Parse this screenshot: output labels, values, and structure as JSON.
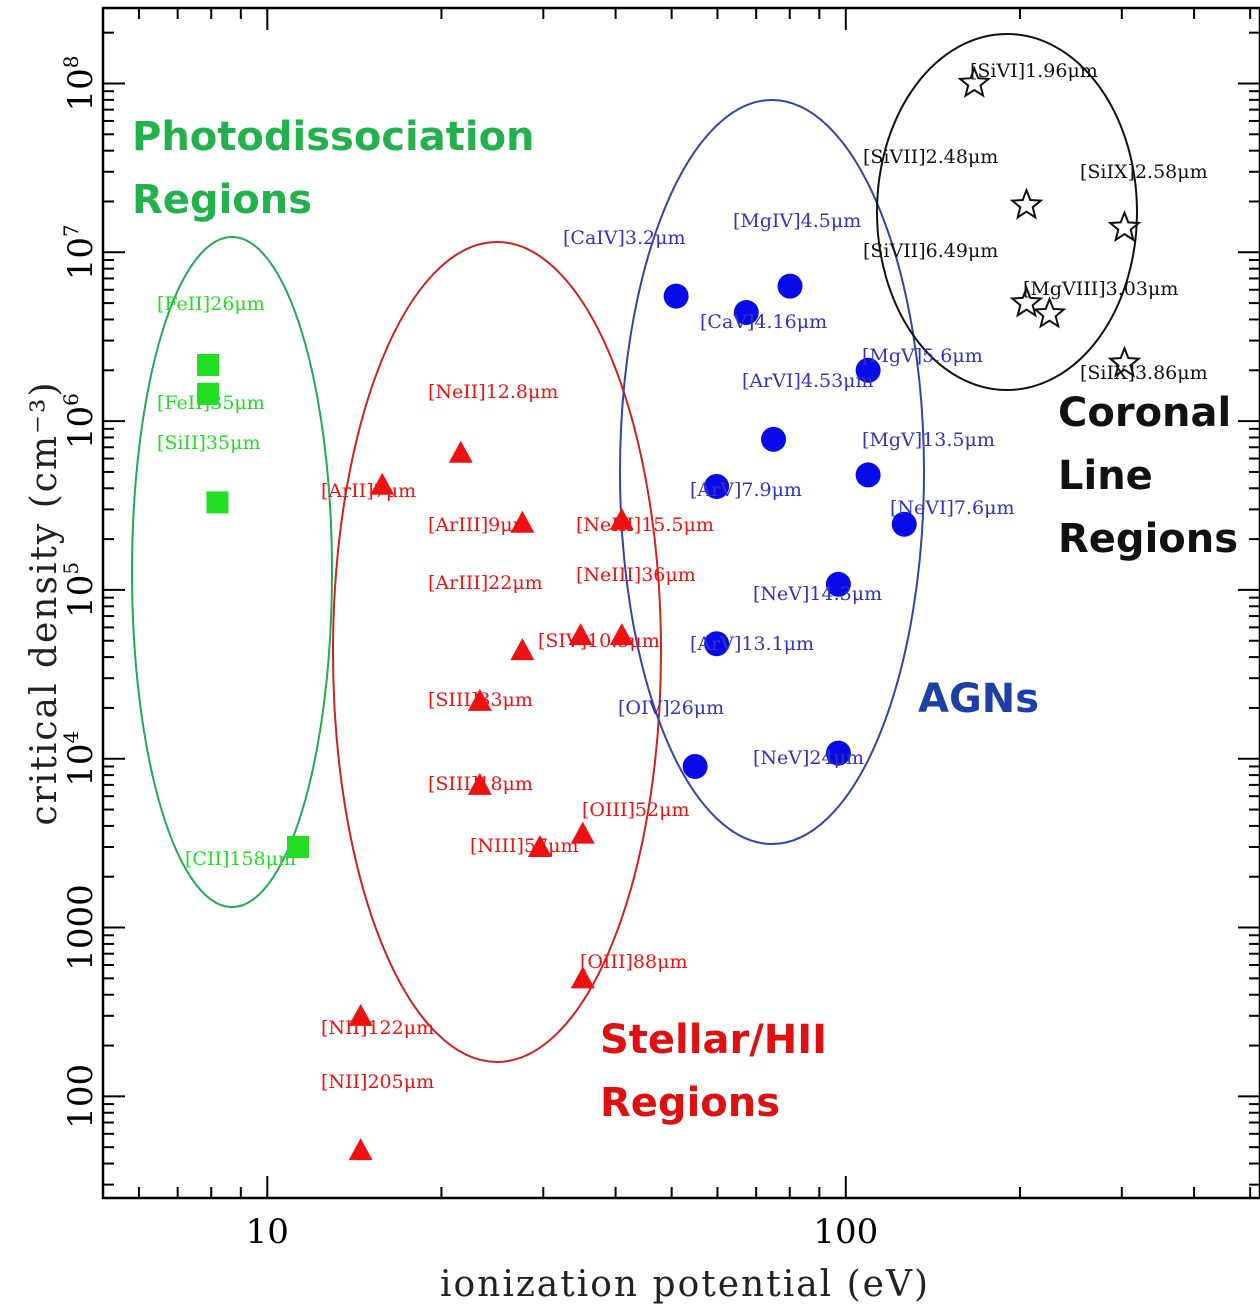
{
  "chart_data": {
    "type": "scatter",
    "xlabel": "ionization potential (eV)",
    "ylabel": "critical density (cm⁻³)",
    "x_scale": "log",
    "y_scale": "log",
    "xlim": [
      5.2,
      520
    ],
    "ylim": [
      25,
      280000000
    ],
    "x_ticks": [
      {
        "value": 10,
        "label": "10"
      },
      {
        "value": 100,
        "label": "100"
      }
    ],
    "y_ticks": [
      {
        "value": 100,
        "label": "100",
        "exp": ""
      },
      {
        "value": 1000,
        "label": "1000",
        "exp": ""
      },
      {
        "value": 10000,
        "label": "10",
        "exp": "4"
      },
      {
        "value": 100000,
        "label": "10",
        "exp": "5"
      },
      {
        "value": 1000000,
        "label": "10",
        "exp": "6"
      },
      {
        "value": 10000000,
        "label": "10",
        "exp": "7"
      },
      {
        "value": 100000000,
        "label": "10",
        "exp": "8"
      }
    ],
    "colors": {
      "pdr_marker": "#22dd22",
      "pdr_ellipse": "#22aa55",
      "pdr_label": "#22b14c",
      "stellar": "#ee1111",
      "stellar_ellipse": "#cc2222",
      "stellar_label": "#dd1111",
      "agn": "#0a0ae8",
      "agn_ellipse": "#3344aa",
      "agn_text": "#3333bb",
      "agn_label": "#1f3fa6",
      "coronal": "#111111"
    },
    "region_labels": [
      {
        "lines": [
          "Photodissociation",
          "Regions"
        ],
        "color": "pdr_label"
      },
      {
        "lines": [
          "Stellar/HII",
          "Regions"
        ],
        "color": "stellar_label"
      },
      {
        "lines": [
          "AGNs"
        ],
        "color": "agn_label"
      },
      {
        "lines": [
          "Coronal",
          "Line",
          "Regions"
        ],
        "color": "coronal"
      }
    ],
    "series": [
      {
        "marker": "square",
        "color": "pdr_marker",
        "points": [
          {
            "x": 7.9,
            "y": 2150000,
            "label": "[FeII]26μm"
          },
          {
            "x": 7.9,
            "y": 1450000,
            "label": "[FeII]35μm"
          },
          {
            "x": 8.2,
            "y": 330000,
            "label": "[SiII]35μm"
          },
          {
            "x": 11.3,
            "y": 3000,
            "label": "[CII]158μm"
          }
        ]
      },
      {
        "marker": "triangle",
        "color": "stellar",
        "points": [
          {
            "x": 15.8,
            "y": 420000,
            "label": "[ArII]7μm"
          },
          {
            "x": 21.6,
            "y": 650000,
            "label": "[NeII]12.8μm"
          },
          {
            "x": 27.6,
            "y": 250000,
            "label": "[ArIII]9μm"
          },
          {
            "x": 27.6,
            "y": 44000,
            "label": "[ArIII]22μm"
          },
          {
            "x": 41,
            "y": 260000,
            "label": "[NeIII]15.5μm"
          },
          {
            "x": 41,
            "y": 54000,
            "label": "[NeIII]36μm"
          },
          {
            "x": 34.8,
            "y": 54000,
            "label": "[SIV]10.5μm"
          },
          {
            "x": 23.3,
            "y": 22000,
            "label": "[SIII]33μm"
          },
          {
            "x": 23.3,
            "y": 7000,
            "label": "[SIII]18μm"
          },
          {
            "x": 35.1,
            "y": 3600,
            "label": "[OIII]52μm"
          },
          {
            "x": 29.6,
            "y": 3000,
            "label": "[NIII]57μm"
          },
          {
            "x": 35.1,
            "y": 500,
            "label": "[OIII]88μm"
          },
          {
            "x": 14.5,
            "y": 300,
            "label": "[NII]122μm"
          },
          {
            "x": 14.5,
            "y": 48,
            "label": "[NII]205μm"
          }
        ]
      },
      {
        "marker": "circle",
        "color": "agn",
        "points": [
          {
            "x": 50.9,
            "y": 5500000,
            "label": "[CaIV]3.2μm"
          },
          {
            "x": 80.1,
            "y": 6300000,
            "label": "[MgIV]4.5μm"
          },
          {
            "x": 67.3,
            "y": 4400000,
            "label": "[CaV]4.16μm"
          },
          {
            "x": 109.3,
            "y": 2000000,
            "label": "[MgV]5.6μm"
          },
          {
            "x": 75,
            "y": 780000,
            "label": "[ArVI]4.53μm"
          },
          {
            "x": 109.3,
            "y": 480000,
            "label": "[MgV]13.5μm"
          },
          {
            "x": 59.8,
            "y": 410000,
            "label": "[ArV]7.9μm"
          },
          {
            "x": 126.2,
            "y": 245000,
            "label": "[NeVI]7.6μm"
          },
          {
            "x": 97.1,
            "y": 108000,
            "label": "[NeV]14.3μm"
          },
          {
            "x": 59.8,
            "y": 48000,
            "label": "[ArV]13.1μm"
          },
          {
            "x": 54.9,
            "y": 9000,
            "label": "[OIV]26μm"
          },
          {
            "x": 97.1,
            "y": 10800,
            "label": "[NeV]24μm"
          }
        ]
      },
      {
        "marker": "star",
        "color": "coronal",
        "points": [
          {
            "x": 166.8,
            "y": 100000000,
            "label": "[SiVI]1.96μm"
          },
          {
            "x": 205.3,
            "y": 19000000,
            "label": "[SiVII]2.48μm"
          },
          {
            "x": 303.2,
            "y": 14000000,
            "label": "[SiIX]2.58μm"
          },
          {
            "x": 205.3,
            "y": 5000000,
            "label": "[SiVII]6.49μm"
          },
          {
            "x": 225,
            "y": 4300000,
            "label": "[MgVIII]3.03μm"
          },
          {
            "x": 303.2,
            "y": 2200000,
            "label": "[SiIX]3.86μm"
          }
        ]
      }
    ]
  }
}
